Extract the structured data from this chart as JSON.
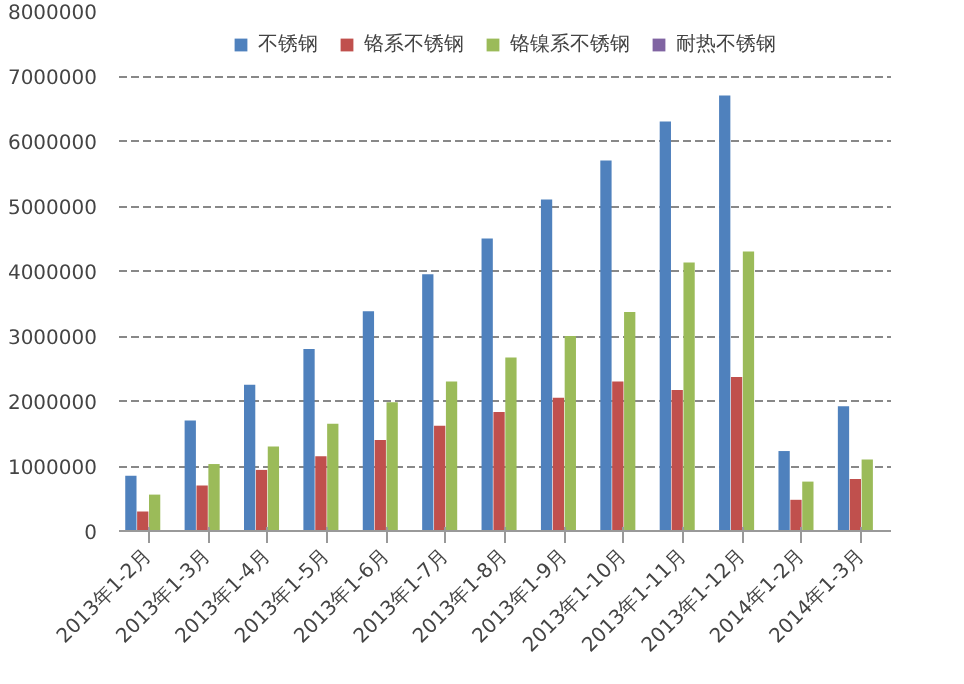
{
  "chart_data": {
    "type": "bar",
    "categories": [
      "2013年1-2月",
      "2013年1-3月",
      "2013年1-4月",
      "2013年1-5月",
      "2013年1-6月",
      "2013年1-7月",
      "2013年1-8月",
      "2013年1-9月",
      "2013年1-10月",
      "2013年1-11月",
      "2013年1-12月",
      "2014年1-2月",
      "2014年1-3月"
    ],
    "series": [
      {
        "name": "不锈钢",
        "color": "#4f81bd",
        "values": [
          850000,
          1700000,
          2250000,
          2800000,
          3380000,
          3950000,
          4500000,
          5100000,
          5700000,
          6300000,
          6700000,
          1230000,
          1920000
        ]
      },
      {
        "name": "铬系不锈钢",
        "color": "#c0504d",
        "values": [
          300000,
          700000,
          940000,
          1150000,
          1400000,
          1620000,
          1830000,
          2050000,
          2300000,
          2170000,
          2370000,
          480000,
          800000
        ]
      },
      {
        "name": "铬镍系不锈钢",
        "color": "#9bbb59",
        "values": [
          560000,
          1030000,
          1300000,
          1650000,
          1980000,
          2300000,
          2670000,
          3000000,
          3370000,
          4130000,
          4300000,
          760000,
          1100000
        ]
      },
      {
        "name": "耐热不锈钢",
        "color": "#8064a2",
        "values": [
          0,
          0,
          0,
          0,
          0,
          0,
          0,
          0,
          0,
          0,
          0,
          0,
          0
        ]
      }
    ],
    "ylim": [
      0,
      8000000
    ],
    "yticks": [
      0,
      1000000,
      2000000,
      3000000,
      4000000,
      5000000,
      6000000,
      7000000,
      8000000
    ],
    "grid": "y",
    "legend": "top"
  }
}
